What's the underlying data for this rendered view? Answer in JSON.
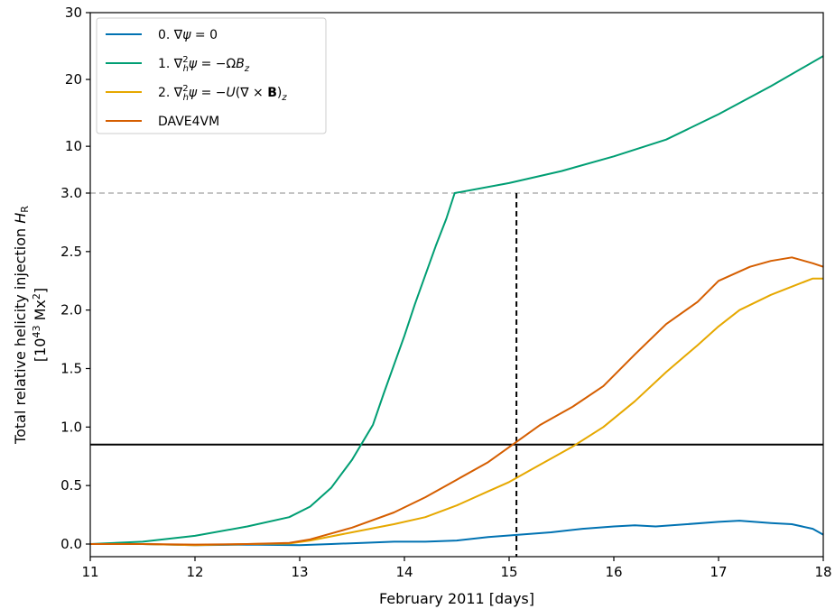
{
  "chart_data": {
    "type": "line",
    "xlabel": "February 2011 [days]",
    "ylabel_line1": "Total relative helicity injection H_R",
    "ylabel_line2": "[10^43 Mx^2]",
    "xlim": [
      11,
      18
    ],
    "x_ticks": [
      "11",
      "12",
      "13",
      "14",
      "15",
      "16",
      "17",
      "18"
    ],
    "y_scale": "piecewise: linear 0-3.0 in lower section, compressed 3.0-30 in upper section",
    "y_ticks": [
      "0.0",
      "0.5",
      "1.0",
      "1.5",
      "2.0",
      "2.5",
      "3.0",
      "10",
      "20",
      "30"
    ],
    "legend_position": "upper-left",
    "series": [
      {
        "name": "0. ∇ψ = 0",
        "color": "#0072b2",
        "points": [
          [
            11.0,
            0.0
          ],
          [
            11.5,
            0.0
          ],
          [
            12.0,
            -0.01
          ],
          [
            12.5,
            -0.005
          ],
          [
            13.0,
            -0.01
          ],
          [
            13.3,
            0.0
          ],
          [
            13.6,
            0.01
          ],
          [
            13.9,
            0.02
          ],
          [
            14.2,
            0.02
          ],
          [
            14.5,
            0.03
          ],
          [
            14.8,
            0.06
          ],
          [
            15.1,
            0.08
          ],
          [
            15.4,
            0.1
          ],
          [
            15.7,
            0.13
          ],
          [
            16.0,
            0.15
          ],
          [
            16.2,
            0.16
          ],
          [
            16.4,
            0.15
          ],
          [
            16.7,
            0.17
          ],
          [
            17.0,
            0.19
          ],
          [
            17.2,
            0.2
          ],
          [
            17.5,
            0.18
          ],
          [
            17.7,
            0.17
          ],
          [
            17.9,
            0.13
          ],
          [
            18.0,
            0.08
          ]
        ]
      },
      {
        "name": "1. ∇²_h ψ = −ΩB_z",
        "color": "#009e73",
        "points": [
          [
            11.0,
            0.0
          ],
          [
            11.5,
            0.02
          ],
          [
            12.0,
            0.07
          ],
          [
            12.5,
            0.15
          ],
          [
            12.9,
            0.23
          ],
          [
            13.1,
            0.32
          ],
          [
            13.3,
            0.48
          ],
          [
            13.5,
            0.72
          ],
          [
            13.6,
            0.87
          ],
          [
            13.7,
            1.02
          ],
          [
            13.8,
            1.28
          ],
          [
            13.9,
            1.53
          ],
          [
            14.0,
            1.78
          ],
          [
            14.1,
            2.05
          ],
          [
            14.2,
            2.3
          ],
          [
            14.3,
            2.55
          ],
          [
            14.4,
            2.78
          ],
          [
            14.48,
            3.0
          ],
          [
            15.0,
            4.5
          ],
          [
            15.5,
            6.3
          ],
          [
            16.0,
            8.5
          ],
          [
            16.5,
            11.0
          ],
          [
            17.0,
            14.8
          ],
          [
            17.5,
            19.0
          ],
          [
            18.0,
            23.5
          ]
        ]
      },
      {
        "name": "2. ∇²_h ψ = −U(∇ × B)_z",
        "color": "#e6a800",
        "points": [
          [
            11.0,
            0.0
          ],
          [
            11.5,
            0.0
          ],
          [
            12.0,
            -0.01
          ],
          [
            12.5,
            0.0
          ],
          [
            12.9,
            0.005
          ],
          [
            13.1,
            0.03
          ],
          [
            13.5,
            0.1
          ],
          [
            13.9,
            0.17
          ],
          [
            14.2,
            0.23
          ],
          [
            14.5,
            0.33
          ],
          [
            14.8,
            0.45
          ],
          [
            15.0,
            0.53
          ],
          [
            15.3,
            0.68
          ],
          [
            15.6,
            0.83
          ],
          [
            15.9,
            1.0
          ],
          [
            16.2,
            1.22
          ],
          [
            16.5,
            1.47
          ],
          [
            16.8,
            1.7
          ],
          [
            17.0,
            1.86
          ],
          [
            17.2,
            2.0
          ],
          [
            17.5,
            2.13
          ],
          [
            17.7,
            2.2
          ],
          [
            17.9,
            2.27
          ],
          [
            18.0,
            2.27
          ]
        ]
      },
      {
        "name": "DAVE4VM",
        "color": "#d55e00",
        "points": [
          [
            11.0,
            0.0
          ],
          [
            11.5,
            0.0
          ],
          [
            12.0,
            -0.005
          ],
          [
            12.5,
            0.0
          ],
          [
            12.9,
            0.01
          ],
          [
            13.1,
            0.04
          ],
          [
            13.5,
            0.14
          ],
          [
            13.9,
            0.27
          ],
          [
            14.2,
            0.4
          ],
          [
            14.5,
            0.55
          ],
          [
            14.8,
            0.7
          ],
          [
            15.08,
            0.88
          ],
          [
            15.3,
            1.02
          ],
          [
            15.6,
            1.17
          ],
          [
            15.9,
            1.35
          ],
          [
            16.2,
            1.62
          ],
          [
            16.5,
            1.88
          ],
          [
            16.8,
            2.07
          ],
          [
            17.0,
            2.25
          ],
          [
            17.3,
            2.37
          ],
          [
            17.5,
            2.42
          ],
          [
            17.7,
            2.45
          ],
          [
            17.9,
            2.4
          ],
          [
            18.0,
            2.37
          ]
        ]
      }
    ],
    "annotations": {
      "hline_dashed_gray_y": 3.0,
      "hline_solid_black_y": 0.85,
      "vline_dashed_black": {
        "x": 15.07,
        "y_from": 0.0,
        "y_to": 3.0
      }
    }
  }
}
